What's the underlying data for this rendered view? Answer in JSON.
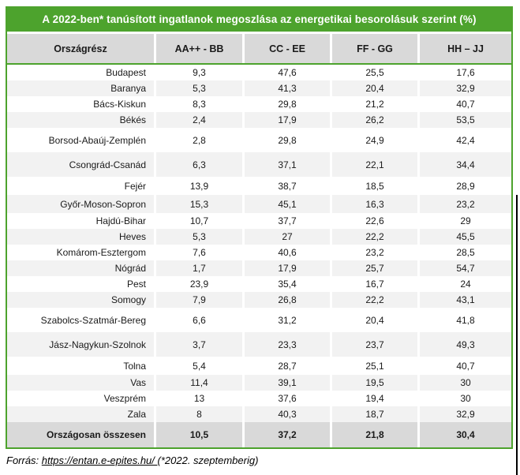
{
  "chart_data": {
    "type": "table",
    "title": "A 2022-ben* tanúsított ingatlanok megoszlása az energetikai besorolásuk szerint (%)",
    "columns": [
      "Országrész",
      "AA++ - BB",
      "CC - EE",
      "FF - GG",
      "HH – JJ"
    ],
    "rows": [
      {
        "name": "Budapest",
        "values": [
          "9,3",
          "47,6",
          "25,5",
          "17,6"
        ],
        "size": "standard"
      },
      {
        "name": "Baranya",
        "values": [
          "5,3",
          "41,3",
          "20,4",
          "32,9"
        ],
        "size": "standard"
      },
      {
        "name": "Bács-Kiskun",
        "values": [
          "8,3",
          "29,8",
          "21,2",
          "40,7"
        ],
        "size": "standard"
      },
      {
        "name": "Békés",
        "values": [
          "2,4",
          "17,9",
          "26,2",
          "53,5"
        ],
        "size": "standard"
      },
      {
        "name": "Borsod-Abaúj-Zemplén",
        "values": [
          "2,8",
          "29,8",
          "24,9",
          "42,4"
        ],
        "size": "tall"
      },
      {
        "name": "Csongrád-Csanád",
        "values": [
          "6,3",
          "37,1",
          "22,1",
          "34,4"
        ],
        "size": "tall"
      },
      {
        "name": "Fejér",
        "values": [
          "13,9",
          "38,7",
          "18,5",
          "28,9"
        ],
        "size": "medium"
      },
      {
        "name": "Győr-Moson-Sopron",
        "values": [
          "15,3",
          "45,1",
          "16,3",
          "23,2"
        ],
        "size": "medium"
      },
      {
        "name": "Hajdú-Bihar",
        "values": [
          "10,7",
          "37,7",
          "22,6",
          "29"
        ],
        "size": "standard"
      },
      {
        "name": "Heves",
        "values": [
          "5,3",
          "27",
          "22,2",
          "45,5"
        ],
        "size": "standard"
      },
      {
        "name": "Komárom-Esztergom",
        "values": [
          "7,6",
          "40,6",
          "23,2",
          "28,5"
        ],
        "size": "standard"
      },
      {
        "name": "Nógrád",
        "values": [
          "1,7",
          "17,9",
          "25,7",
          "54,7"
        ],
        "size": "standard"
      },
      {
        "name": "Pest",
        "values": [
          "23,9",
          "35,4",
          "16,7",
          "24"
        ],
        "size": "standard"
      },
      {
        "name": "Somogy",
        "values": [
          "7,9",
          "26,8",
          "22,2",
          "43,1"
        ],
        "size": "standard"
      },
      {
        "name": "Szabolcs-Szatmár-Bereg",
        "values": [
          "6,6",
          "31,2",
          "20,4",
          "41,8"
        ],
        "size": "tall"
      },
      {
        "name": "Jász-Nagykun-Szolnok",
        "values": [
          "3,7",
          "23,3",
          "23,7",
          "49,3"
        ],
        "size": "tall"
      },
      {
        "name": "Tolna",
        "values": [
          "5,4",
          "28,7",
          "25,1",
          "40,7"
        ],
        "size": "medium"
      },
      {
        "name": "Vas",
        "values": [
          "11,4",
          "39,1",
          "19,5",
          "30"
        ],
        "size": "standard"
      },
      {
        "name": "Veszprém",
        "values": [
          "13",
          "37,6",
          "19,4",
          "30"
        ],
        "size": "standard"
      },
      {
        "name": "Zala",
        "values": [
          "8",
          "40,3",
          "18,7",
          "32,9"
        ],
        "size": "standard"
      }
    ],
    "total_row": {
      "name": "Országosan összesen",
      "values": [
        "10,5",
        "37,2",
        "21,8",
        "30,4"
      ]
    },
    "layout_hints": {
      "decimal_separator": ",",
      "first_column_align": "right",
      "value_align": "center"
    }
  },
  "footer": {
    "prefix": "Forrás: ",
    "link": "https://entan.e-epites.hu/ ",
    "suffix": "(*2022. szeptemberig)"
  },
  "colors": {
    "accent_green": "#4DA32D",
    "header_bg": "#D9D9D9",
    "alt_row_bg": "#F2F2F2",
    "total_row_bg": "#D9D9D9",
    "title_text": "#FFFFFF",
    "edge_line": "#000000"
  }
}
